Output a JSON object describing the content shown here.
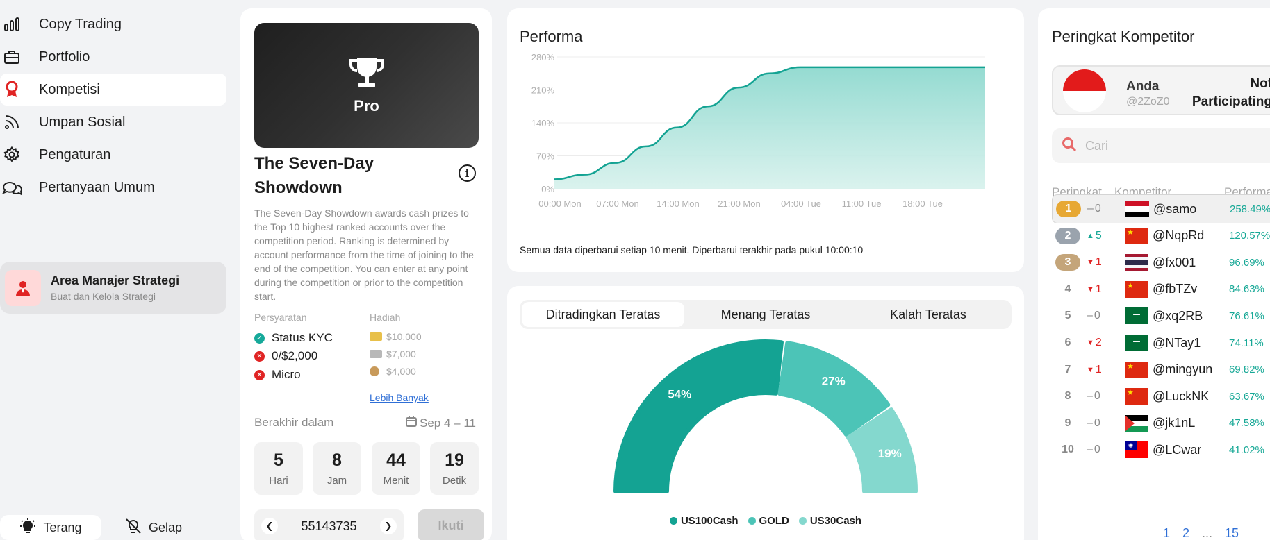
{
  "sidebar": {
    "items": [
      {
        "label": "Copy Trading",
        "icon": "bar-chart-icon"
      },
      {
        "label": "Portfolio",
        "icon": "briefcase-icon"
      },
      {
        "label": "Kompetisi",
        "icon": "award-icon",
        "active": true
      },
      {
        "label": "Umpan Sosial",
        "icon": "rss-icon"
      },
      {
        "label": "Pengaturan",
        "icon": "gear-icon"
      },
      {
        "label": "Pertanyaan Umum",
        "icon": "chat-bubbles-icon"
      }
    ],
    "strategy": {
      "title": "Area Manajer Strategi",
      "subtitle": "Buat dan Kelola Strategi"
    },
    "theme": {
      "light": "Terang",
      "dark": "Gelap"
    }
  },
  "competition": {
    "badge": "Pro",
    "title": "The Seven-Day Showdown",
    "description": "The Seven-Day Showdown awards cash prizes to the Top 10 highest ranked accounts over the competition period. Ranking is determined by account performance from the time of joining to the end of the competition. You can enter at any point during the competition or prior to the competition start.",
    "requirements_label": "Persyaratan",
    "prizes_label": "Hadiah",
    "requirements": [
      {
        "text": "Status KYC",
        "ok": true
      },
      {
        "text": "0/$2,000",
        "ok": false
      },
      {
        "text": "Micro",
        "ok": false
      }
    ],
    "prizes": [
      "$10,000",
      "$7,000",
      "$4,000"
    ],
    "more": "Lebih Banyak",
    "ends_label": "Berakhir dalam",
    "date_range": "Sep 4 – 11",
    "countdown": [
      {
        "value": "5",
        "unit": "Hari"
      },
      {
        "value": "8",
        "unit": "Jam"
      },
      {
        "value": "44",
        "unit": "Menit"
      },
      {
        "value": "19",
        "unit": "Detik"
      }
    ],
    "account": "55143735",
    "join": "Ikuti"
  },
  "performance": {
    "title": "Performa",
    "note": "Semua data diperbarui setiap 10 menit. Diperbarui terakhir pada pukul 10:00:10"
  },
  "chart_data": {
    "type": "area",
    "title": "Performa",
    "x_ticks": [
      "00:00 Mon",
      "07:00 Mon",
      "14:00 Mon",
      "21:00 Mon",
      "04:00 Tue",
      "11:00 Tue",
      "18:00 Tue"
    ],
    "y_ticks": [
      "0%",
      "70%",
      "140%",
      "210%",
      "280%"
    ],
    "ylim": [
      0,
      280
    ],
    "x": [
      0,
      4,
      8,
      12,
      16,
      20,
      24,
      28,
      32,
      36,
      40,
      44,
      48,
      52,
      56
    ],
    "values": [
      20,
      30,
      55,
      90,
      130,
      175,
      215,
      245,
      258,
      258,
      258,
      258,
      258,
      258,
      258
    ],
    "color": "#14a393",
    "grid": true
  },
  "allocation": {
    "tabs": [
      "Ditradingkan Teratas",
      "Menang Teratas",
      "Kalah Teratas"
    ],
    "active_tab": 0,
    "slices": [
      {
        "name": "US100Cash",
        "value": 54,
        "label": "54%",
        "color": "#14a393"
      },
      {
        "name": "GOLD",
        "value": 27,
        "label": "27%",
        "color": "#4cc4b7"
      },
      {
        "name": "US30Cash",
        "value": 19,
        "label": "19%",
        "color": "#84d8ce"
      }
    ]
  },
  "ranking": {
    "title": "Peringkat Kompetitor",
    "me": {
      "name": "Anda",
      "handle": "@2ZoZ0",
      "status_line1": "Not",
      "status_line2": "Participating"
    },
    "search_placeholder": "Cari",
    "headers": {
      "rank": "Peringkat",
      "competitor": "Kompetitor",
      "performance": "Performa"
    },
    "rows": [
      {
        "rank": "1",
        "delta": "0",
        "dir": "none",
        "flag": "iraq",
        "handle": "@samo",
        "perf": "258.49%"
      },
      {
        "rank": "2",
        "delta": "5",
        "dir": "up",
        "flag": "china",
        "handle": "@NqpRd",
        "perf": "120.57%"
      },
      {
        "rank": "3",
        "delta": "1",
        "dir": "down",
        "flag": "thailand",
        "handle": "@fx001",
        "perf": "96.69%"
      },
      {
        "rank": "4",
        "delta": "1",
        "dir": "down",
        "flag": "china",
        "handle": "@fbTZv",
        "perf": "84.63%"
      },
      {
        "rank": "5",
        "delta": "0",
        "dir": "none",
        "flag": "saudi",
        "handle": "@xq2RB",
        "perf": "76.61%"
      },
      {
        "rank": "6",
        "delta": "2",
        "dir": "down",
        "flag": "saudi",
        "handle": "@NTay1",
        "perf": "74.11%"
      },
      {
        "rank": "7",
        "delta": "1",
        "dir": "down",
        "flag": "china",
        "handle": "@mingyun",
        "perf": "69.82%"
      },
      {
        "rank": "8",
        "delta": "0",
        "dir": "none",
        "flag": "china",
        "handle": "@LuckNK",
        "perf": "63.67%"
      },
      {
        "rank": "9",
        "delta": "0",
        "dir": "none",
        "flag": "palestine",
        "handle": "@jk1nL",
        "perf": "47.58%"
      },
      {
        "rank": "10",
        "delta": "0",
        "dir": "none",
        "flag": "taiwan",
        "handle": "@LCwar",
        "perf": "41.02%"
      }
    ],
    "pages": [
      "1",
      "2",
      "...",
      "15"
    ]
  }
}
